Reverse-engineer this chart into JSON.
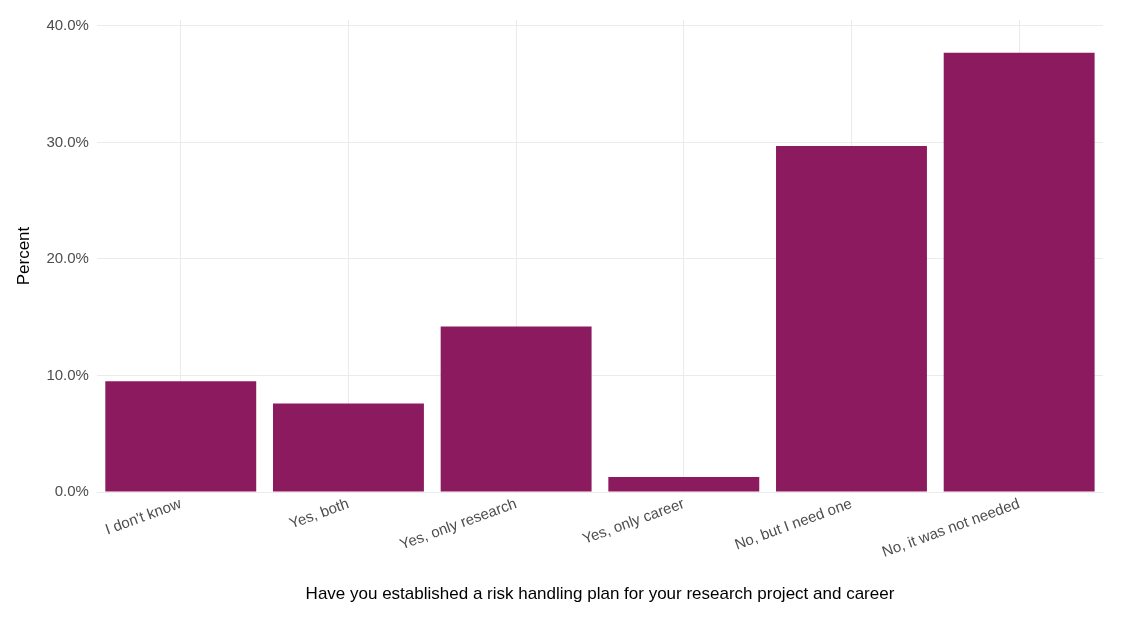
{
  "chart_data": {
    "type": "bar",
    "xlabel": "Have you established a risk handling plan for your research project and career",
    "ylabel": "Percent",
    "categories": [
      "I don't know",
      "Yes, both",
      "Yes, only research",
      "Yes, only career",
      "No, but I need one",
      "No, it was not needed"
    ],
    "values": [
      9.5,
      7.6,
      14.2,
      1.3,
      29.7,
      37.7
    ],
    "color": "#8b1a5e",
    "ylim": [
      0,
      40.5
    ],
    "yticks": [
      {
        "value": 0,
        "label": "0.0%"
      },
      {
        "value": 10,
        "label": "10.0%"
      },
      {
        "value": 20,
        "label": "20.0%"
      },
      {
        "value": 30,
        "label": "30.0%"
      },
      {
        "value": 40,
        "label": "40.0%"
      }
    ],
    "grid": true
  }
}
